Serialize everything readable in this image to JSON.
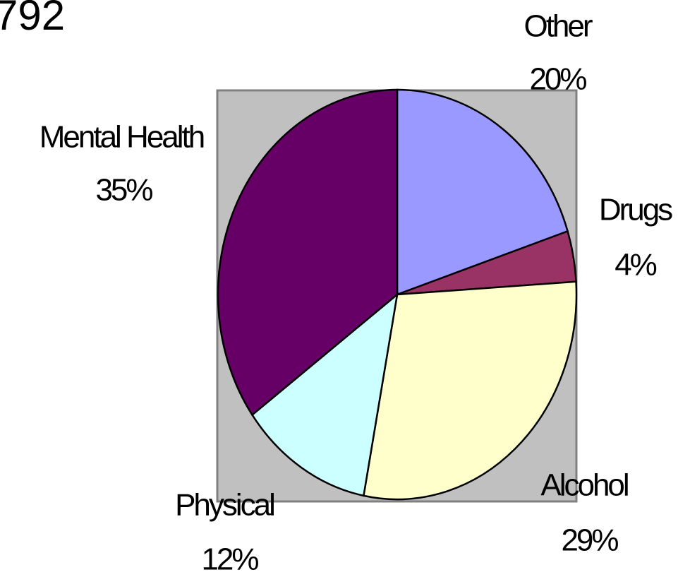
{
  "chart_data": {
    "type": "pie",
    "title": "792",
    "categories": [
      "Other",
      "Drugs",
      "Alcohol",
      "Physical",
      "Mental Health"
    ],
    "values": [
      20,
      4,
      29,
      12,
      35
    ],
    "value_labels": [
      "20%",
      "4%",
      "29%",
      "12%",
      "35%"
    ],
    "colors": [
      "#9999ff",
      "#993366",
      "#ffffcc",
      "#ccffff",
      "#660066"
    ]
  }
}
